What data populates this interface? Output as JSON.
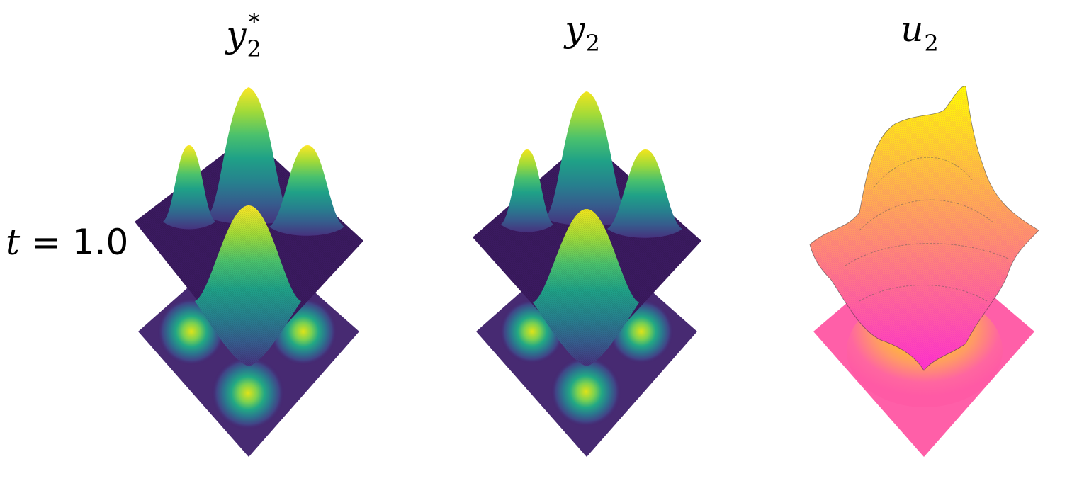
{
  "row_label": {
    "var": "t",
    "rest": " = 1.0"
  },
  "chart_data": [
    {
      "type": "surface3d_with_contour",
      "title_base": "y",
      "title_sub": "2",
      "title_sup": "*",
      "colormap": "viridis",
      "description_values": {
        "bumps": [
          {
            "center": [
              0.25,
              0.75
            ],
            "relative_height": 1.0
          },
          {
            "center": [
              0.75,
              0.75
            ],
            "relative_height": 0.85
          },
          {
            "center": [
              0.25,
              0.25
            ],
            "relative_height": 0.85
          },
          {
            "center": [
              0.75,
              0.25
            ],
            "relative_height": 0.95
          }
        ]
      }
    },
    {
      "type": "surface3d_with_contour",
      "title_base": "y",
      "title_sub": "2",
      "title_sup": "",
      "colormap": "viridis",
      "description_values": {
        "bumps": [
          {
            "center": [
              0.25,
              0.75
            ],
            "relative_height": 0.97
          },
          {
            "center": [
              0.75,
              0.75
            ],
            "relative_height": 0.83
          },
          {
            "center": [
              0.25,
              0.25
            ],
            "relative_height": 0.83
          },
          {
            "center": [
              0.75,
              0.25
            ],
            "relative_height": 0.93
          }
        ]
      }
    },
    {
      "type": "surface3d_with_contour",
      "title_base": "u",
      "title_sub": "2",
      "title_sup": "",
      "colormap": "spring",
      "description_values": {
        "shape": "irregular broad hump with peak near far corner"
      }
    }
  ],
  "colors": {
    "viridis_low": "#440154",
    "viridis_mid": "#21918c",
    "viridis_high": "#fde725",
    "spring_low": "#ff00ff",
    "spring_high": "#ffff00"
  }
}
